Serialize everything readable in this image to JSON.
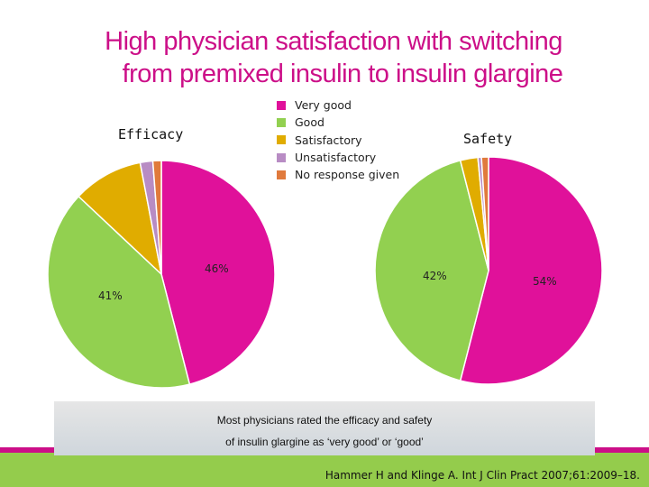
{
  "slide": {
    "title_line1": "High physician satisfaction with switching",
    "title_line2": "from premixed insulin to insulin glargine",
    "callout_line1": "Most physicians rated the efficacy and safety",
    "callout_line2": "of insulin glargine as ‘very good’ or ‘good’",
    "citation": "Hammer H and Klinge A. Int J Clin Pract 2007;61:2009–18.",
    "colors": {
      "title": "#cc0f88",
      "band": "#94cc4c",
      "line": "#cc0f88"
    }
  },
  "legend": [
    {
      "label": "Very good",
      "color": "#e0119a"
    },
    {
      "label": "Good",
      "color": "#92d050"
    },
    {
      "label": "Satisfactory",
      "color": "#e0ac00"
    },
    {
      "label": "Unsatisfactory",
      "color": "#b88cc4"
    },
    {
      "label": "No response given",
      "color": "#e07a3c"
    }
  ],
  "chart_data": [
    {
      "type": "pie",
      "title": "Efficacy",
      "categories": [
        "Very good",
        "Good",
        "Satisfactory",
        "Unsatisfactory",
        "No response given"
      ],
      "values": [
        46,
        41,
        10,
        1.8,
        1.2
      ],
      "data_labels": {
        "very_good": "46%",
        "good": "41%"
      }
    },
    {
      "type": "pie",
      "title": "Safety",
      "categories": [
        "Very good",
        "Good",
        "Satisfactory",
        "Unsatisfactory",
        "No response given"
      ],
      "values": [
        54,
        42,
        2.5,
        0.5,
        1
      ],
      "data_labels": {
        "very_good": "54%",
        "good": "42%"
      }
    }
  ]
}
